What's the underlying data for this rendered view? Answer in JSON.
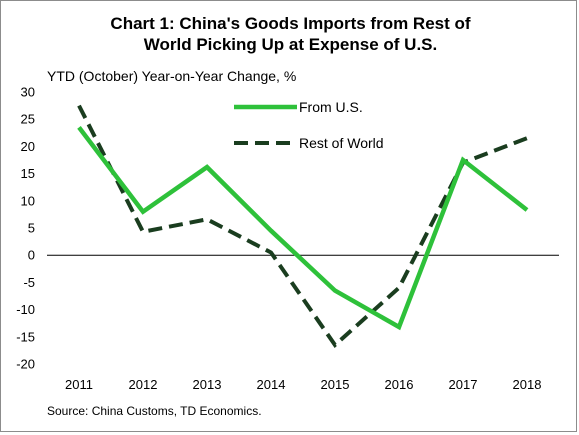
{
  "title_line1": "Chart 1: China's Goods Imports from Rest of",
  "title_line2": "World Picking Up at Expense of U.S.",
  "source": "Source: China Customs, TD Economics.",
  "chart_data": {
    "type": "line",
    "title": "Chart 1: China's Goods Imports from Rest of World Picking Up at Expense of U.S.",
    "xlabel": "",
    "ylabel": "YTD (October) Year-on-Year Change, %",
    "categories": [
      "2011",
      "2012",
      "2013",
      "2014",
      "2015",
      "2016",
      "2017",
      "2018"
    ],
    "ylim": [
      -20,
      30
    ],
    "yticks": [
      30,
      25,
      20,
      15,
      10,
      5,
      0,
      -5,
      -10,
      -15,
      -20
    ],
    "grid": false,
    "legend_position": "top-center",
    "series": [
      {
        "name": "From U.S.",
        "style": "solid",
        "color": "#2ec13a",
        "values": [
          23.5,
          8.0,
          16.2,
          4.5,
          -6.5,
          -13.2,
          17.5,
          8.3
        ]
      },
      {
        "name": "Rest of World",
        "style": "dashed",
        "color": "#1a3d1f",
        "values": [
          27.5,
          4.3,
          6.6,
          0.5,
          -16.5,
          -6.0,
          17.0,
          21.5
        ]
      }
    ]
  }
}
